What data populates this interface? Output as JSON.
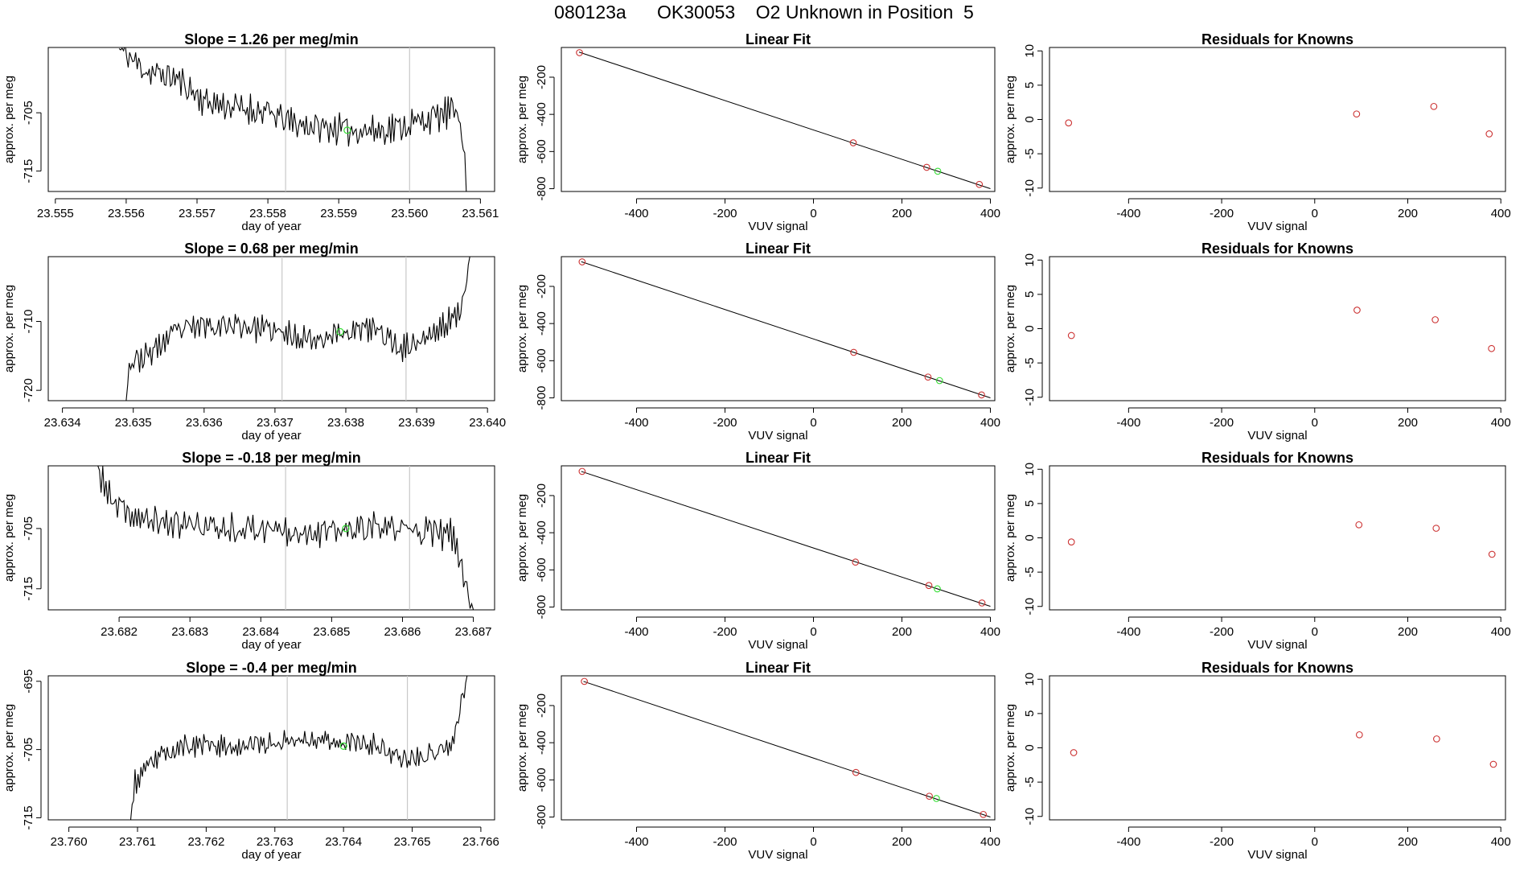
{
  "page_title": "080123a      OK30053    O2 Unknown in Position  5",
  "colors": {
    "line": "#000000",
    "known_point": "#cc3333",
    "unknown_point": "#33dd33",
    "vline": "#c8c8c8"
  },
  "rows": [
    {
      "time_series": {
        "type": "line",
        "title": "Slope =  1.26  per meg/min",
        "xlabel": "day of year",
        "ylabel": "approx. per meg",
        "xlim": [
          23.5549,
          23.5612
        ],
        "ylim": [
          -718.5,
          -693.8
        ],
        "xticks": [
          23.555,
          23.556,
          23.557,
          23.558,
          23.559,
          23.56,
          23.561
        ],
        "xtick_labels": [
          "23.555",
          "23.556",
          "23.557",
          "23.558",
          "23.559",
          "23.560",
          "23.561"
        ],
        "yticks": [
          -705,
          -715
        ],
        "ytick_labels": [
          "-705",
          "-715"
        ],
        "vlines": [
          23.55825,
          23.56
        ],
        "unknown_point": {
          "x": 23.55912,
          "y": -708.0
        },
        "trend": [
          [
            23.5559,
            -694
          ],
          [
            23.5563,
            -698
          ],
          [
            23.5567,
            -699
          ],
          [
            23.5571,
            -703
          ],
          [
            23.5575,
            -704
          ],
          [
            23.558,
            -705
          ],
          [
            23.5584,
            -707
          ],
          [
            23.5588,
            -707.5
          ],
          [
            23.5592,
            -708
          ],
          [
            23.5596,
            -708
          ],
          [
            23.56,
            -707
          ],
          [
            23.5604,
            -705.5
          ],
          [
            23.5607,
            -704.5
          ],
          [
            23.56078,
            -712
          ],
          [
            23.5608,
            -718.5
          ]
        ],
        "noise_amplitude": 4.5,
        "seed": 11
      },
      "linear_fit": {
        "type": "scatter",
        "title": "Linear Fit",
        "xlabel": "VUV signal",
        "ylabel": "approx. per meg",
        "xlim": [
          -570,
          410
        ],
        "ylim": [
          -815,
          -40
        ],
        "xticks": [
          -400,
          -200,
          0,
          200,
          400
        ],
        "xtick_labels": [
          "-400",
          "-200",
          "0",
          "200",
          "400"
        ],
        "yticks": [
          -200,
          -400,
          -600,
          -800
        ],
        "ytick_labels": [
          "-200",
          "-400",
          "-600",
          "-800"
        ],
        "fit_line": [
          [
            -530,
            -65
          ],
          [
            400,
            -800
          ]
        ],
        "knowns": [
          [
            -529,
            -68
          ],
          [
            90,
            -553
          ],
          [
            256,
            -685
          ],
          [
            375,
            -777
          ]
        ],
        "unknown": [
          [
            281,
            -706
          ]
        ]
      },
      "residuals": {
        "type": "scatter",
        "title": "Residuals for Knowns",
        "xlabel": "VUV signal",
        "ylabel": "approx. per meg",
        "xlim": [
          -570,
          410
        ],
        "ylim": [
          -10.5,
          10.5
        ],
        "xticks": [
          -400,
          -200,
          0,
          200,
          400
        ],
        "xtick_labels": [
          "-400",
          "-200",
          "0",
          "200",
          "400"
        ],
        "yticks": [
          10,
          5,
          0,
          -5,
          -10
        ],
        "ytick_labels": [
          "10",
          "5",
          "0",
          "-5",
          "-10"
        ],
        "points": [
          [
            -529,
            -0.5
          ],
          [
            90,
            0.8
          ],
          [
            256,
            1.9
          ],
          [
            375,
            -2.1
          ]
        ]
      }
    },
    {
      "time_series": {
        "type": "line",
        "title": "Slope =  0.68  per meg/min",
        "xlabel": "day of year",
        "ylabel": "approx. per meg",
        "xlim": [
          23.6338,
          23.6401
        ],
        "ylim": [
          -721.5,
          -700.6
        ],
        "xticks": [
          23.634,
          23.635,
          23.636,
          23.637,
          23.638,
          23.639,
          23.64
        ],
        "xtick_labels": [
          "23.634",
          "23.635",
          "23.636",
          "23.637",
          "23.638",
          "23.639",
          "23.640"
        ],
        "yticks": [
          -710,
          -720
        ],
        "ytick_labels": [
          "-710",
          "-720"
        ],
        "vlines": [
          23.6371,
          23.63885
        ],
        "unknown_point": {
          "x": 23.63792,
          "y": -711.5
        },
        "trend": [
          [
            23.6349,
            -721.5
          ],
          [
            23.63495,
            -716
          ],
          [
            23.6352,
            -715
          ],
          [
            23.6356,
            -711.5
          ],
          [
            23.636,
            -710.5
          ],
          [
            23.6364,
            -710.5
          ],
          [
            23.6368,
            -711
          ],
          [
            23.6372,
            -712
          ],
          [
            23.6376,
            -712.5
          ],
          [
            23.638,
            -711.5
          ],
          [
            23.6384,
            -711
          ],
          [
            23.6388,
            -714
          ],
          [
            23.6392,
            -712
          ],
          [
            23.6396,
            -709
          ],
          [
            23.63975,
            -700.6
          ]
        ],
        "noise_amplitude": 3.2,
        "seed": 23
      },
      "linear_fit": {
        "type": "scatter",
        "title": "Linear Fit",
        "xlabel": "VUV signal",
        "ylabel": "approx. per meg",
        "xlim": [
          -570,
          410
        ],
        "ylim": [
          -815,
          -40
        ],
        "xticks": [
          -400,
          -200,
          0,
          200,
          400
        ],
        "xtick_labels": [
          "-400",
          "-200",
          "0",
          "200",
          "400"
        ],
        "yticks": [
          -200,
          -400,
          -600,
          -800
        ],
        "ytick_labels": [
          "-200",
          "-400",
          "-600",
          "-800"
        ],
        "fit_line": [
          [
            -525,
            -67
          ],
          [
            400,
            -800
          ]
        ],
        "knowns": [
          [
            -523,
            -68
          ],
          [
            91,
            -555
          ],
          [
            259,
            -688
          ],
          [
            380,
            -784
          ]
        ],
        "unknown": [
          [
            285,
            -707
          ]
        ]
      },
      "residuals": {
        "type": "scatter",
        "title": "Residuals for Knowns",
        "xlabel": "VUV signal",
        "ylabel": "approx. per meg",
        "xlim": [
          -570,
          410
        ],
        "ylim": [
          -10.5,
          10.5
        ],
        "xticks": [
          -400,
          -200,
          0,
          200,
          400
        ],
        "xtick_labels": [
          "-400",
          "-200",
          "0",
          "200",
          "400"
        ],
        "yticks": [
          10,
          5,
          0,
          -5,
          -10
        ],
        "ytick_labels": [
          "10",
          "5",
          "0",
          "-5",
          "-10"
        ],
        "points": [
          [
            -523,
            -1.0
          ],
          [
            91,
            2.7
          ],
          [
            259,
            1.3
          ],
          [
            380,
            -2.9
          ]
        ]
      }
    },
    {
      "time_series": {
        "type": "line",
        "title": "Slope =  -0.18  per meg/min",
        "xlabel": "day of year",
        "ylabel": "approx. per meg",
        "xlim": [
          23.681,
          23.6873
        ],
        "ylim": [
          -718.5,
          -694.6
        ],
        "xticks": [
          23.682,
          23.683,
          23.684,
          23.685,
          23.686,
          23.687
        ],
        "xtick_labels": [
          "23.682",
          "23.683",
          "23.684",
          "23.685",
          "23.686",
          "23.687"
        ],
        "yticks": [
          -705,
          -715
        ],
        "ytick_labels": [
          "-705",
          "-715"
        ],
        "vlines": [
          23.68435,
          23.6861
        ],
        "unknown_point": {
          "x": 23.6852,
          "y": -705.0
        },
        "trend": [
          [
            23.6817,
            -694.6
          ],
          [
            23.6819,
            -701
          ],
          [
            23.6823,
            -703.5
          ],
          [
            23.6827,
            -704
          ],
          [
            23.6831,
            -704.5
          ],
          [
            23.6835,
            -705
          ],
          [
            23.6839,
            -705
          ],
          [
            23.6843,
            -705
          ],
          [
            23.6847,
            -705.5
          ],
          [
            23.6851,
            -705.5
          ],
          [
            23.6855,
            -705
          ],
          [
            23.6859,
            -705
          ],
          [
            23.6863,
            -705.5
          ],
          [
            23.6867,
            -706
          ],
          [
            23.68685,
            -712
          ],
          [
            23.687,
            -718.5
          ]
        ],
        "noise_amplitude": 4.2,
        "seed": 37
      },
      "linear_fit": {
        "type": "scatter",
        "title": "Linear Fit",
        "xlabel": "VUV signal",
        "ylabel": "approx. per meg",
        "xlim": [
          -570,
          410
        ],
        "ylim": [
          -815,
          -40
        ],
        "xticks": [
          -400,
          -200,
          0,
          200,
          400
        ],
        "xtick_labels": [
          "-400",
          "-200",
          "0",
          "200",
          "400"
        ],
        "yticks": [
          -200,
          -400,
          -600,
          -800
        ],
        "ytick_labels": [
          "-200",
          "-400",
          "-600",
          "-800"
        ],
        "fit_line": [
          [
            -525,
            -70
          ],
          [
            400,
            -796
          ]
        ],
        "knowns": [
          [
            -523,
            -70
          ],
          [
            95,
            -558
          ],
          [
            261,
            -684
          ],
          [
            381,
            -778
          ]
        ],
        "unknown": [
          [
            280,
            -702
          ]
        ]
      },
      "residuals": {
        "type": "scatter",
        "title": "Residuals for Knowns",
        "xlabel": "VUV signal",
        "ylabel": "approx. per meg",
        "xlim": [
          -570,
          410
        ],
        "ylim": [
          -10.5,
          10.5
        ],
        "xticks": [
          -400,
          -200,
          0,
          200,
          400
        ],
        "xtick_labels": [
          "-400",
          "-200",
          "0",
          "200",
          "400"
        ],
        "yticks": [
          10,
          5,
          0,
          -5,
          -10
        ],
        "ytick_labels": [
          "10",
          "5",
          "0",
          "-5",
          "-10"
        ],
        "points": [
          [
            -523,
            -0.6
          ],
          [
            95,
            1.9
          ],
          [
            261,
            1.4
          ],
          [
            381,
            -2.4
          ]
        ]
      }
    },
    {
      "time_series": {
        "type": "line",
        "title": "Slope =  -0.4  per meg/min",
        "xlabel": "day of year",
        "ylabel": "approx. per meg",
        "xlim": [
          23.7597,
          23.7662
        ],
        "ylim": [
          -715.3,
          -694.2
        ],
        "xticks": [
          23.76,
          23.761,
          23.762,
          23.763,
          23.764,
          23.765,
          23.766
        ],
        "xtick_labels": [
          "23.760",
          "23.761",
          "23.762",
          "23.763",
          "23.764",
          "23.765",
          "23.766"
        ],
        "yticks": [
          -695,
          -705,
          -715
        ],
        "ytick_labels": [
          "-695",
          "-705",
          "-715"
        ],
        "vlines": [
          23.76318,
          23.76493
        ],
        "unknown_point": {
          "x": 23.764,
          "y": -704.5
        },
        "trend": [
          [
            23.7609,
            -715.3
          ],
          [
            23.76095,
            -710
          ],
          [
            23.7613,
            -706
          ],
          [
            23.7617,
            -704.5
          ],
          [
            23.7621,
            -704.5
          ],
          [
            23.7625,
            -704.5
          ],
          [
            23.7629,
            -704
          ],
          [
            23.7633,
            -703.5
          ],
          [
            23.7637,
            -703.5
          ],
          [
            23.7641,
            -704
          ],
          [
            23.7645,
            -704.5
          ],
          [
            23.7649,
            -706.5
          ],
          [
            23.7653,
            -705.5
          ],
          [
            23.7656,
            -704
          ],
          [
            23.7658,
            -694.2
          ]
        ],
        "noise_amplitude": 2.6,
        "seed": 53
      },
      "linear_fit": {
        "type": "scatter",
        "title": "Linear Fit",
        "xlabel": "VUV signal",
        "ylabel": "approx. per meg",
        "xlim": [
          -570,
          410
        ],
        "ylim": [
          -815,
          -40
        ],
        "xticks": [
          -400,
          -200,
          0,
          200,
          400
        ],
        "xtick_labels": [
          "-400",
          "-200",
          "0",
          "200",
          "400"
        ],
        "yticks": [
          -200,
          -400,
          -600,
          -800
        ],
        "ytick_labels": [
          "-200",
          "-400",
          "-600",
          "-800"
        ],
        "fit_line": [
          [
            -520,
            -70
          ],
          [
            400,
            -800
          ]
        ],
        "knowns": [
          [
            -518,
            -70
          ],
          [
            96,
            -560
          ],
          [
            262,
            -688
          ],
          [
            384,
            -786
          ]
        ],
        "unknown": [
          [
            278,
            -700
          ]
        ]
      },
      "residuals": {
        "type": "scatter",
        "title": "Residuals for Knowns",
        "xlabel": "VUV signal",
        "ylabel": "approx. per meg",
        "xlim": [
          -570,
          410
        ],
        "ylim": [
          -10.5,
          10.5
        ],
        "xticks": [
          -400,
          -200,
          0,
          200,
          400
        ],
        "xtick_labels": [
          "-400",
          "-200",
          "0",
          "200",
          "400"
        ],
        "yticks": [
          10,
          5,
          0,
          -5,
          -10
        ],
        "ytick_labels": [
          "10",
          "5",
          "0",
          "-5",
          "-10"
        ],
        "points": [
          [
            -518,
            -0.7
          ],
          [
            96,
            1.9
          ],
          [
            262,
            1.3
          ],
          [
            384,
            -2.4
          ]
        ]
      }
    }
  ]
}
